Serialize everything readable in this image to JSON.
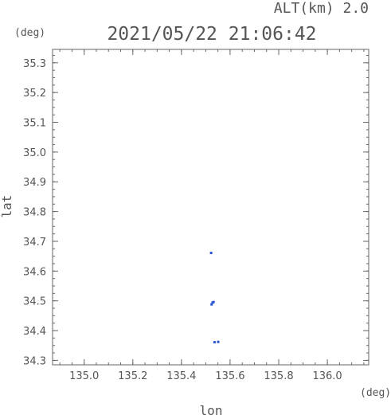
{
  "header": {
    "altitude_label": "ALT(km) 2.0",
    "timestamp": "2021/05/22 21:06:42",
    "y_unit": "(deg)",
    "x_unit": "(deg)"
  },
  "chart_data": {
    "type": "scatter",
    "title": "2021/05/22 21:06:42",
    "subtitle": "ALT(km) 2.0",
    "xlabel": "lon",
    "ylabel": "lat",
    "x_unit": "(deg)",
    "y_unit": "(deg)",
    "xlim": [
      134.87,
      136.17
    ],
    "ylim": [
      34.285,
      35.345
    ],
    "x_ticks": [
      135.0,
      135.2,
      135.4,
      135.6,
      135.8,
      136.0
    ],
    "x_tick_labels": [
      "135.0",
      "135.2",
      "135.4",
      "135.6",
      "135.8",
      "136.0"
    ],
    "y_ticks": [
      34.3,
      34.4,
      34.5,
      34.6,
      34.7,
      34.8,
      34.9,
      35.0,
      35.1,
      35.2,
      35.3
    ],
    "y_tick_labels": [
      "34.3",
      "34.4",
      "34.5",
      "34.6",
      "34.7",
      "34.8",
      "34.9",
      "35.0",
      "35.1",
      "35.2",
      "35.3"
    ],
    "grid": false,
    "point_color": "#2a55d8",
    "points": [
      {
        "x": 135.522,
        "y": 34.661
      },
      {
        "x": 135.528,
        "y": 34.494
      },
      {
        "x": 135.532,
        "y": 34.496
      },
      {
        "x": 135.524,
        "y": 34.488
      },
      {
        "x": 135.536,
        "y": 34.361
      },
      {
        "x": 135.551,
        "y": 34.362
      }
    ]
  }
}
